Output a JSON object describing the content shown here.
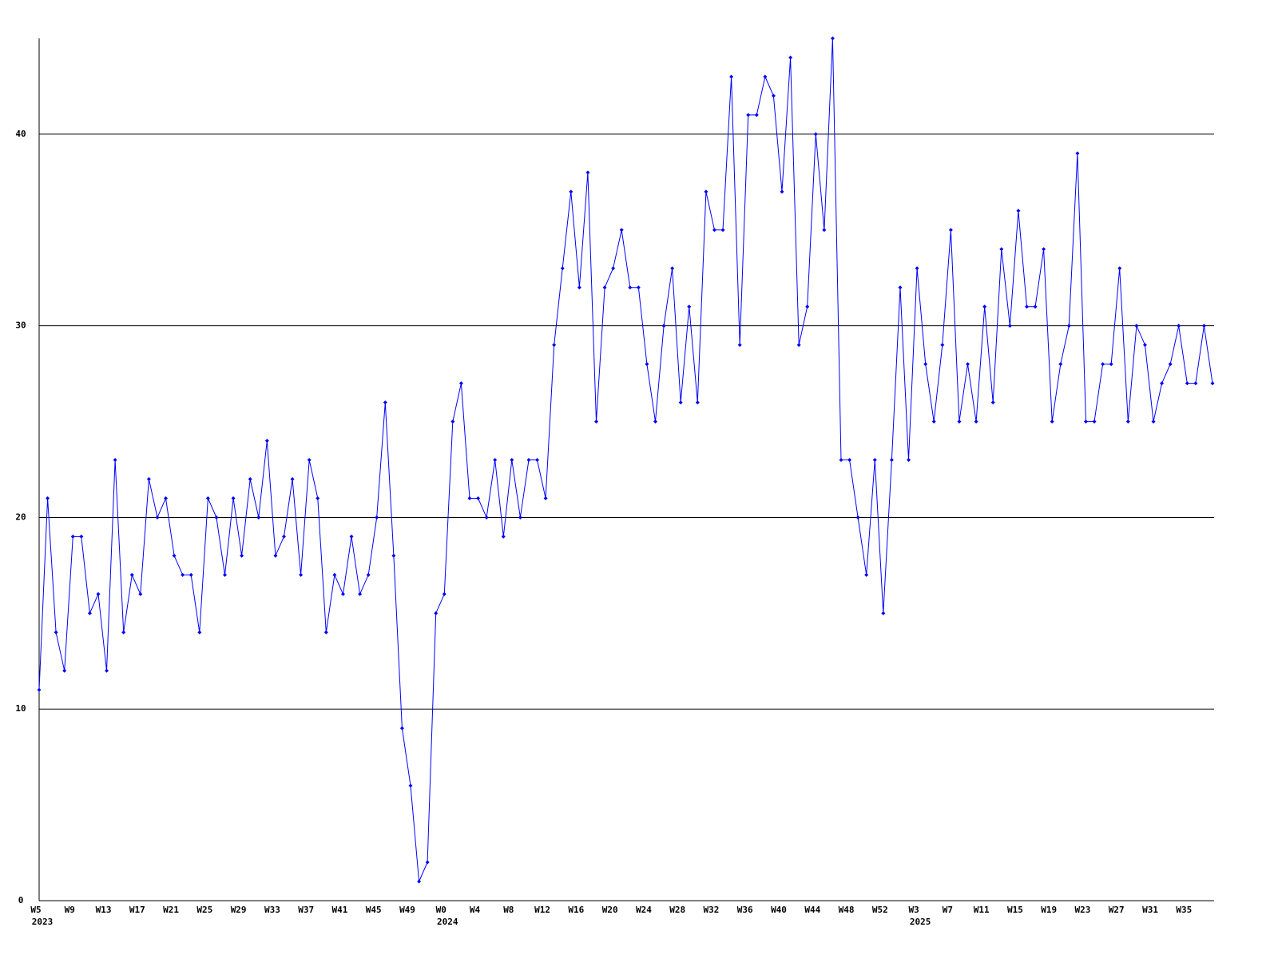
{
  "chart_data": {
    "type": "line",
    "categories": [
      "W5",
      null,
      null,
      null,
      "W9",
      null,
      null,
      null,
      "W13",
      null,
      null,
      null,
      "W17",
      null,
      null,
      null,
      "W21",
      null,
      null,
      null,
      "W25",
      null,
      null,
      null,
      "W29",
      null,
      null,
      null,
      "W33",
      null,
      null,
      null,
      "W37",
      null,
      null,
      null,
      "W41",
      null,
      null,
      null,
      "W45",
      null,
      null,
      null,
      "W49",
      null,
      null,
      null,
      "W0",
      null,
      null,
      null,
      "W4",
      null,
      null,
      null,
      "W8",
      null,
      null,
      null,
      "W12",
      null,
      null,
      null,
      "W16",
      null,
      null,
      null,
      "W20",
      null,
      null,
      null,
      "W24",
      null,
      null,
      null,
      "W28",
      null,
      null,
      null,
      "W32",
      null,
      null,
      null,
      "W36",
      null,
      null,
      null,
      "W40",
      null,
      null,
      null,
      "W44",
      null,
      null,
      null,
      "W48",
      null,
      null,
      null,
      "W52",
      null,
      null,
      null,
      "W3",
      null,
      null,
      null,
      "W7",
      null,
      null,
      null,
      "W11",
      null,
      null,
      null,
      "W15",
      null,
      null,
      null,
      "W19",
      null,
      null,
      null,
      "W23",
      null,
      null,
      null,
      "W27",
      null,
      null,
      null,
      "W31",
      null,
      null,
      null,
      "W35",
      null,
      null,
      null
    ],
    "category_years": [
      "2023",
      null,
      null,
      null,
      null,
      null,
      null,
      null,
      null,
      null,
      null,
      null,
      null,
      null,
      null,
      null,
      null,
      null,
      null,
      null,
      null,
      null,
      null,
      null,
      null,
      null,
      null,
      null,
      null,
      null,
      null,
      null,
      null,
      null,
      null,
      null,
      null,
      null,
      null,
      null,
      null,
      null,
      null,
      null,
      null,
      null,
      null,
      null,
      "2024",
      null,
      null,
      null,
      null,
      null,
      null,
      null,
      null,
      null,
      null,
      null,
      null,
      null,
      null,
      null,
      null,
      null,
      null,
      null,
      null,
      null,
      null,
      null,
      null,
      null,
      null,
      null,
      null,
      null,
      null,
      null,
      null,
      null,
      null,
      null,
      null,
      null,
      null,
      null,
      null,
      null,
      null,
      null,
      null,
      null,
      null,
      null,
      null,
      null,
      null,
      null,
      null,
      null,
      null,
      null,
      "2025",
      null,
      null,
      null,
      null,
      null,
      null,
      null,
      null,
      null,
      null,
      null,
      null,
      null,
      null,
      null,
      null,
      null,
      null,
      null,
      null,
      null,
      null,
      null,
      null,
      null,
      null,
      null,
      null,
      null,
      null,
      null,
      null,
      null,
      null,
      null
    ],
    "series": [
      {
        "color": "#0000ff",
        "values": [
          11,
          21,
          14,
          12,
          19,
          19,
          15,
          16,
          12,
          23,
          14,
          17,
          16,
          22,
          20,
          21,
          18,
          17,
          17,
          14,
          21,
          20,
          17,
          21,
          18,
          22,
          20,
          24,
          18,
          19,
          22,
          17,
          23,
          21,
          14,
          17,
          16,
          19,
          16,
          17,
          20,
          26,
          18,
          9,
          6,
          1,
          2,
          15,
          16,
          25,
          27,
          21,
          21,
          20,
          23,
          19,
          23,
          20,
          23,
          23,
          21,
          29,
          33,
          37,
          32,
          38,
          25,
          32,
          33,
          35,
          32,
          32,
          28,
          25,
          30,
          33,
          26,
          31,
          26,
          37,
          35,
          35,
          43,
          29,
          41,
          41,
          43,
          42,
          37,
          44,
          29,
          31,
          40,
          35,
          45,
          23,
          23,
          20,
          17,
          23,
          15,
          23,
          32,
          23,
          33,
          28,
          25,
          29,
          35,
          25,
          28,
          25,
          31,
          26,
          34,
          30,
          36,
          31,
          31,
          34,
          25,
          28,
          30,
          39,
          25,
          25,
          28,
          28,
          33,
          25,
          30,
          29,
          25,
          27,
          28,
          30,
          27,
          27,
          30,
          27
        ]
      }
    ],
    "ylim": [
      0,
      45
    ],
    "yticks": [
      0,
      10,
      20,
      30,
      40
    ],
    "grid": true
  }
}
